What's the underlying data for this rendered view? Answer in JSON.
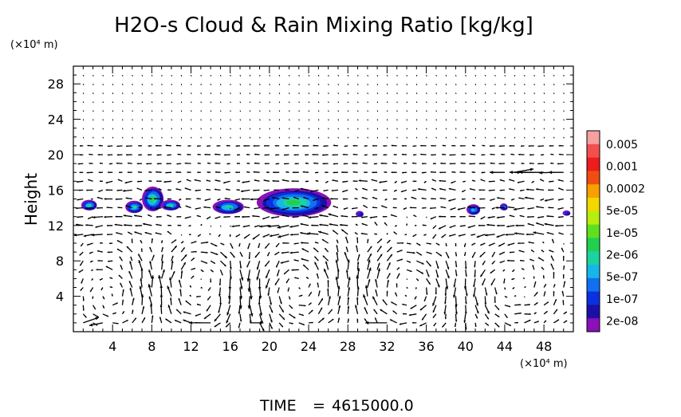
{
  "chart_data": {
    "type": "heatmap",
    "title": "H2O-s Cloud & Rain Mixing Ratio [kg/kg]",
    "ylabel": "Height",
    "y_unit_label": "(×10⁴ m)",
    "x_unit_label": "(×10⁴ m)",
    "xlim": [
      0,
      51
    ],
    "ylim": [
      0,
      30
    ],
    "xticks": [
      "4",
      "8",
      "12",
      "16",
      "20",
      "24",
      "28",
      "32",
      "36",
      "40",
      "44",
      "48"
    ],
    "yticks": [
      "4",
      "8",
      "12",
      "16",
      "20",
      "24",
      "28"
    ],
    "x_tick_values": [
      4,
      8,
      12,
      16,
      20,
      24,
      28,
      32,
      36,
      40,
      44,
      48
    ],
    "y_tick_values": [
      4,
      8,
      12,
      16,
      20,
      24,
      28
    ],
    "colorbar": {
      "labels": [
        "0.005",
        "0.001",
        "0.0002",
        "5e-05",
        "1e-05",
        "2e-06",
        "5e-07",
        "1e-07",
        "2e-08"
      ],
      "colors": [
        "#f6a0a0",
        "#f25050",
        "#ee1c1c",
        "#f04e10",
        "#f7a000",
        "#f2d800",
        "#b7ee10",
        "#5fe01e",
        "#22d050",
        "#1cd3a0",
        "#16b6e8",
        "#1070f0",
        "#0a30e0",
        "#1a10a8",
        "#8a10b8"
      ]
    },
    "cloud_blobs": [
      {
        "x": 1.6,
        "y": 14.3,
        "rx": 0.8,
        "ry": 0.6,
        "level": 5
      },
      {
        "x": 6.2,
        "y": 14.1,
        "rx": 0.9,
        "ry": 0.7,
        "level": 5
      },
      {
        "x": 8.1,
        "y": 15.0,
        "rx": 1.1,
        "ry": 1.4,
        "level": 6
      },
      {
        "x": 9.9,
        "y": 14.3,
        "rx": 1.0,
        "ry": 0.6,
        "level": 5
      },
      {
        "x": 15.8,
        "y": 14.1,
        "rx": 1.6,
        "ry": 0.8,
        "level": 5
      },
      {
        "x": 22.5,
        "y": 14.6,
        "rx": 3.8,
        "ry": 1.6,
        "level": 6
      },
      {
        "x": 29.2,
        "y": 13.3,
        "rx": 0.4,
        "ry": 0.35,
        "level": 2
      },
      {
        "x": 40.8,
        "y": 13.8,
        "rx": 0.7,
        "ry": 0.6,
        "level": 4
      },
      {
        "x": 43.9,
        "y": 14.1,
        "rx": 0.4,
        "ry": 0.4,
        "level": 3
      },
      {
        "x": 50.3,
        "y": 13.4,
        "rx": 0.4,
        "ry": 0.3,
        "level": 2
      }
    ],
    "wind_vectors": [
      {
        "x": 1,
        "y": 1,
        "u": 2.3,
        "v": 0.8
      },
      {
        "x": 3,
        "y": 1,
        "u": -2.0,
        "v": -0.4
      },
      {
        "x": 14,
        "y": 1,
        "u": -3.2,
        "v": 0
      },
      {
        "x": 18,
        "y": 1,
        "u": 2.0,
        "v": 0
      },
      {
        "x": 32,
        "y": 1,
        "u": -3.2,
        "v": 0
      },
      {
        "x": 45,
        "y": 18,
        "u": 2.8,
        "v": 0.5
      },
      {
        "x": 48,
        "y": 18,
        "u": -4.2,
        "v": 0
      },
      {
        "x": 50,
        "y": 18,
        "u": -2.2,
        "v": 0
      }
    ],
    "grid": false,
    "legend_placement": "right colorbar"
  },
  "footer": {
    "time_label": "TIME",
    "equals": "=",
    "time_value": "4615000.0"
  }
}
